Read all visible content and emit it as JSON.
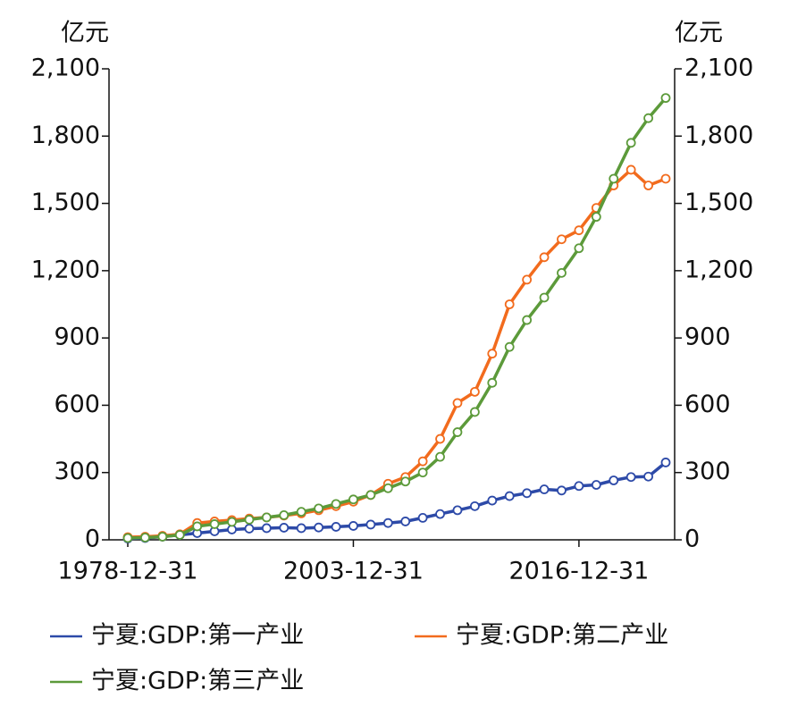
{
  "chart_data": {
    "type": "line",
    "ylabel": "亿元",
    "y2label": "亿元",
    "categories": [
      "1978-12-31",
      null,
      null,
      null,
      null,
      null,
      null,
      null,
      null,
      null,
      null,
      null,
      null,
      "2003-12-31",
      null,
      null,
      null,
      null,
      null,
      null,
      null,
      null,
      null,
      null,
      null,
      null,
      "2016-12-31",
      null,
      null,
      null,
      null,
      null
    ],
    "series": [
      {
        "name": "宁夏:GDP:第一产业",
        "color": "#2d4aa8",
        "values": [
          6,
          8,
          14,
          22,
          30,
          38,
          46,
          50,
          52,
          54,
          52,
          55,
          58,
          62,
          68,
          75,
          82,
          98,
          115,
          132,
          150,
          175,
          195,
          208,
          225,
          220,
          240,
          245,
          265,
          280,
          282,
          345
        ]
      },
      {
        "name": "宁夏:GDP:第二产业",
        "color": "#f26b1d",
        "values": [
          12,
          14,
          18,
          25,
          75,
          82,
          88,
          95,
          100,
          108,
          118,
          132,
          150,
          170,
          200,
          250,
          280,
          350,
          450,
          610,
          660,
          830,
          1050,
          1160,
          1260,
          1340,
          1380,
          1480,
          1580,
          1650,
          1580,
          1610
        ]
      },
      {
        "name": "宁夏:GDP:第三产业",
        "color": "#5c9a3a",
        "values": [
          8,
          10,
          14,
          22,
          60,
          70,
          80,
          90,
          100,
          110,
          125,
          140,
          160,
          180,
          200,
          230,
          260,
          300,
          370,
          480,
          570,
          700,
          860,
          980,
          1080,
          1190,
          1300,
          1440,
          1610,
          1770,
          1880,
          1970
        ]
      }
    ],
    "ylim": [
      0,
      2100
    ],
    "yticks": [
      0,
      300,
      600,
      900,
      {
        "value": 1200,
        "label": "1,200"
      },
      {
        "value": 1500,
        "label": "1,500"
      },
      {
        "value": 1800,
        "label": "1,800"
      },
      {
        "value": 2100,
        "label": "2,100"
      }
    ],
    "y2lim": [
      0,
      2100
    ],
    "y2ticks": [
      0,
      300,
      600,
      900,
      {
        "value": 1200,
        "label": "1,200"
      },
      {
        "value": 1500,
        "label": "1,500"
      },
      {
        "value": 1800,
        "label": "1,800"
      },
      {
        "value": 2100,
        "label": "2,100"
      }
    ],
    "markers": true
  }
}
